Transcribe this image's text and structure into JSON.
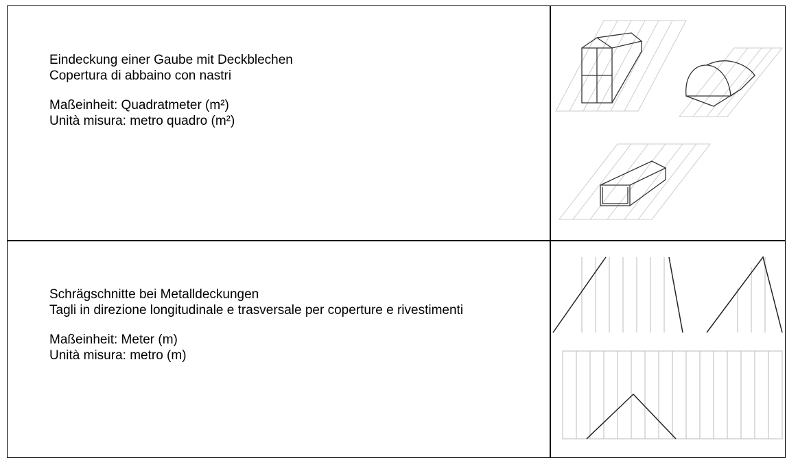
{
  "table": {
    "rows": [
      {
        "title_de": "Eindeckung einer Gaube mit Deckblechen",
        "title_it": "Copertura di abbaino con nastri",
        "unit_de": "Maßeinheit: Quadratmeter (m²)",
        "unit_it": "Unità misura: metro quadro (m²)"
      },
      {
        "title_de": "Schrägschnitte bei Metalldeckungen",
        "title_it": "Tagli in direzione longitudinale e trasversale per coperture e rivestimenti",
        "unit_de": "Maßeinheit: Meter (m)",
        "unit_it": "Unità misura: metro (m)"
      }
    ]
  }
}
